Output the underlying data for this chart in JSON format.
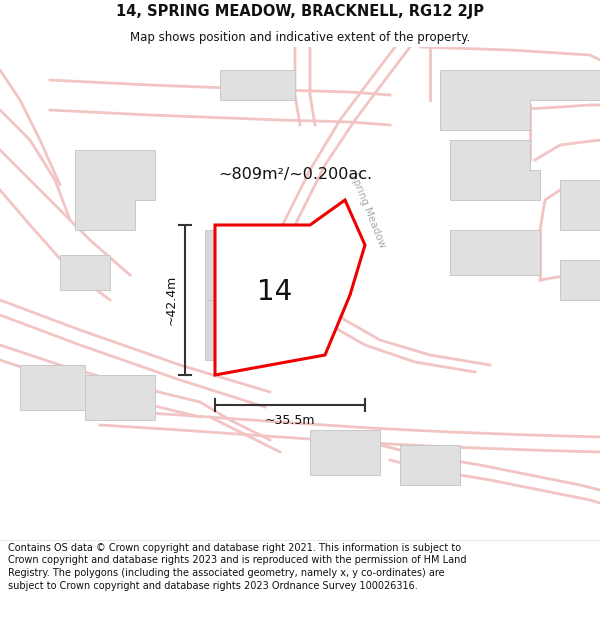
{
  "title": "14, SPRING MEADOW, BRACKNELL, RG12 2JP",
  "subtitle": "Map shows position and indicative extent of the property.",
  "footer": "Contains OS data © Crown copyright and database right 2021. This information is subject to Crown copyright and database rights 2023 and is reproduced with the permission of HM Land Registry. The polygons (including the associated geometry, namely x, y co-ordinates) are subject to Crown copyright and database rights 2023 Ordnance Survey 100026316.",
  "area_label": "~809m²/~0.200ac.",
  "number_label": "14",
  "dim_horizontal": "~35.5m",
  "dim_vertical": "~42.4m",
  "street_label": "Spring Meadow",
  "title_fontsize": 10.5,
  "subtitle_fontsize": 8.5,
  "footer_fontsize": 7.0,
  "road_color": "#f2c4c4",
  "road_lw": 1.5,
  "building_color": "#e0e0e0",
  "building_edge": "#c8c8c8",
  "plot_edge_color": "#ee0000",
  "plot_fill": "#ffffff",
  "dim_color": "#333333",
  "text_color": "#111111",
  "street_text_color": "#aaaaaa",
  "map_bg": "#f8f8f8"
}
